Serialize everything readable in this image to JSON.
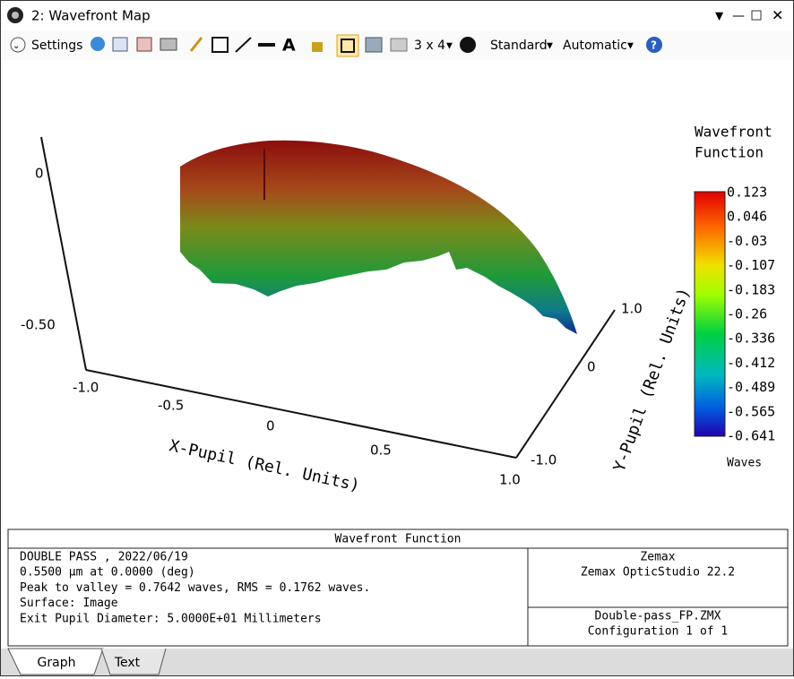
{
  "window": {
    "title": "2: Wavefront Map"
  },
  "toolbar": {
    "settings": "Settings",
    "layout": "3 x 4",
    "standard": "Standard",
    "automatic": "Automatic"
  },
  "plot": {
    "z_ticks": [
      "0",
      "-0.50"
    ],
    "x_ticks": [
      "-1.0",
      "-0.5",
      "0",
      "0.5",
      "1.0"
    ],
    "y_ticks": [
      "1.0",
      "0",
      "-1.0"
    ],
    "x_label": "X-Pupil (Rel. Units)",
    "y_label": "Y-Pupil (Rel. Units)",
    "legend": {
      "title": [
        "Wavefront",
        "Function"
      ],
      "labels": [
        "0.123",
        "0.046",
        "-0.03",
        "-0.107",
        "-0.183",
        "-0.26",
        "-0.336",
        "-0.412",
        "-0.489",
        "-0.565",
        "-0.641"
      ],
      "unit": "Waves"
    }
  },
  "info": {
    "title": "Wavefront Function",
    "left": [
      "DOUBLE PASS , 2022/06/19",
      "0.5500 µm at 0.0000 (deg)",
      "Peak to valley = 0.7642 waves, RMS = 0.1762 waves.",
      "Surface: Image",
      "Exit Pupil Diameter: 5.0000E+01 Millimeters"
    ],
    "right_top": [
      "Zemax",
      "Zemax OpticStudio 22.2"
    ],
    "right_bottom": [
      "Double-pass_FP.ZMX",
      "Configuration 1 of 1"
    ]
  },
  "tabs": [
    "Graph",
    "Text"
  ]
}
